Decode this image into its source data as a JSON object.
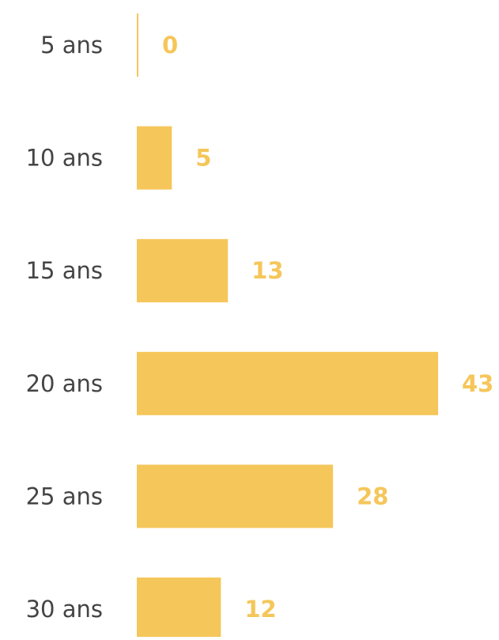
{
  "chart_data": {
    "type": "barh",
    "categories": [
      "5 ans",
      "10 ans",
      "15 ans",
      "20 ans",
      "25 ans",
      "30 ans"
    ],
    "values": [
      0,
      5,
      13,
      43,
      28,
      12
    ],
    "color": "#f5c65a"
  }
}
